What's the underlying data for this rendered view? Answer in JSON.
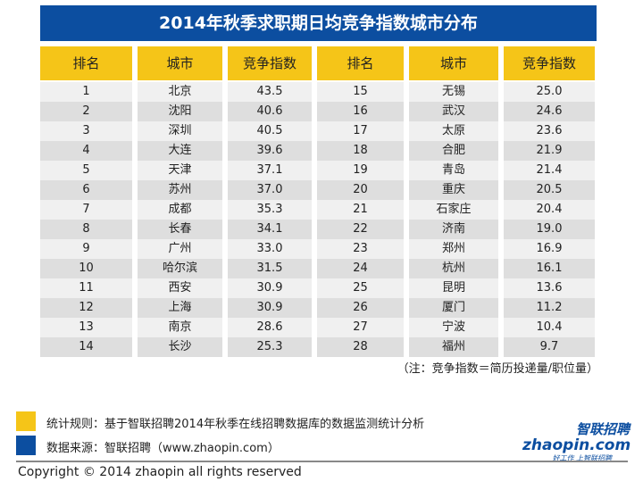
{
  "title": "2014年秋季求职期日均竞争指数城市分布",
  "headers": [
    "排名",
    "城市",
    "竞争指数",
    "排名",
    "城市",
    "竞争指数"
  ],
  "left": [
    [
      "1",
      "北京",
      "43.5"
    ],
    [
      "2",
      "沈阳",
      "40.6"
    ],
    [
      "3",
      "深圳",
      "40.5"
    ],
    [
      "4",
      "大连",
      "39.6"
    ],
    [
      "5",
      "天津",
      "37.1"
    ],
    [
      "6",
      "苏州",
      "37.0"
    ],
    [
      "7",
      "成都",
      "35.3"
    ],
    [
      "8",
      "长春",
      "34.1"
    ],
    [
      "9",
      "广州",
      "33.0"
    ],
    [
      "10",
      "哈尔滨",
      "31.5"
    ],
    [
      "11",
      "西安",
      "30.9"
    ],
    [
      "12",
      "上海",
      "30.9"
    ],
    [
      "13",
      "南京",
      "28.6"
    ],
    [
      "14",
      "长沙",
      "25.3"
    ]
  ],
  "right": [
    [
      "15",
      "无锡",
      "25.0"
    ],
    [
      "16",
      "武汉",
      "24.6"
    ],
    [
      "17",
      "太原",
      "23.6"
    ],
    [
      "18",
      "合肥",
      "21.9"
    ],
    [
      "19",
      "青岛",
      "21.4"
    ],
    [
      "20",
      "重庆",
      "20.5"
    ],
    [
      "21",
      "石家庄",
      "20.4"
    ],
    [
      "22",
      "济南",
      "19.0"
    ],
    [
      "23",
      "郑州",
      "16.9"
    ],
    [
      "24",
      "杭州",
      "16.1"
    ],
    [
      "25",
      "昆明",
      "13.6"
    ],
    [
      "26",
      "厦门",
      "11.2"
    ],
    [
      "27",
      "宁波",
      "10.4"
    ],
    [
      "28",
      "福州",
      "9.7"
    ]
  ],
  "note": "（注：竞争指数＝简历投递量/职位量）",
  "legend": [
    {
      "text": "统计规则：基于智联招聘2014年秋季在线招聘数据库的数据监测统计分析",
      "color": "#f5c518"
    },
    {
      "text": "数据来源：智联招聘（www.zhaopin.com）",
      "color": "#0c4ea0"
    }
  ],
  "logo": {
    "cn": "智联招聘",
    "en": "zhaopin.com",
    "slogan": "好工作 上智联招聘"
  },
  "copyright": "Copyright  ©  2014 zhaopin all rights reserved"
}
